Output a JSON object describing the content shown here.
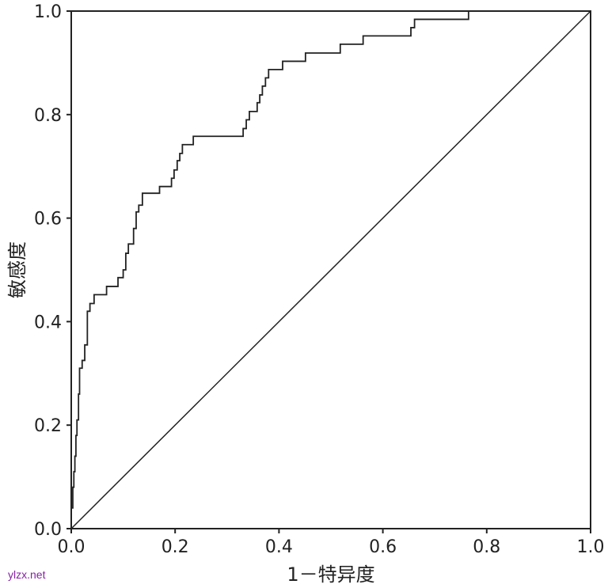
{
  "chart_data": {
    "type": "line",
    "title": "",
    "xlabel": "1－特异度",
    "ylabel": "敏感度",
    "xlim": [
      0,
      1
    ],
    "ylim": [
      0,
      1
    ],
    "x_ticks": [
      "0.0",
      "0.2",
      "0.4",
      "0.6",
      "0.8",
      "1.0"
    ],
    "y_ticks": [
      "0.0",
      "0.2",
      "0.4",
      "0.6",
      "0.8",
      "1.0"
    ],
    "grid": false,
    "legend": "none",
    "series": [
      {
        "kind": "step",
        "color": "#222222",
        "points": [
          [
            0.0,
            0.0
          ],
          [
            0.0,
            0.04
          ],
          [
            0.003,
            0.04
          ],
          [
            0.003,
            0.08
          ],
          [
            0.005,
            0.08
          ],
          [
            0.005,
            0.11
          ],
          [
            0.007,
            0.11
          ],
          [
            0.007,
            0.14
          ],
          [
            0.009,
            0.14
          ],
          [
            0.009,
            0.18
          ],
          [
            0.011,
            0.18
          ],
          [
            0.011,
            0.21
          ],
          [
            0.014,
            0.21
          ],
          [
            0.014,
            0.26
          ],
          [
            0.016,
            0.26
          ],
          [
            0.016,
            0.31
          ],
          [
            0.021,
            0.31
          ],
          [
            0.021,
            0.325
          ],
          [
            0.026,
            0.325
          ],
          [
            0.026,
            0.355
          ],
          [
            0.031,
            0.355
          ],
          [
            0.031,
            0.42
          ],
          [
            0.036,
            0.42
          ],
          [
            0.036,
            0.435
          ],
          [
            0.044,
            0.435
          ],
          [
            0.044,
            0.452
          ],
          [
            0.068,
            0.452
          ],
          [
            0.068,
            0.468
          ],
          [
            0.09,
            0.468
          ],
          [
            0.09,
            0.485
          ],
          [
            0.1,
            0.485
          ],
          [
            0.1,
            0.5
          ],
          [
            0.105,
            0.5
          ],
          [
            0.105,
            0.532
          ],
          [
            0.11,
            0.532
          ],
          [
            0.11,
            0.55
          ],
          [
            0.12,
            0.55
          ],
          [
            0.12,
            0.58
          ],
          [
            0.125,
            0.58
          ],
          [
            0.125,
            0.612
          ],
          [
            0.13,
            0.612
          ],
          [
            0.13,
            0.625
          ],
          [
            0.137,
            0.625
          ],
          [
            0.137,
            0.648
          ],
          [
            0.17,
            0.648
          ],
          [
            0.17,
            0.661
          ],
          [
            0.193,
            0.661
          ],
          [
            0.193,
            0.677
          ],
          [
            0.198,
            0.677
          ],
          [
            0.198,
            0.693
          ],
          [
            0.204,
            0.693
          ],
          [
            0.204,
            0.711
          ],
          [
            0.209,
            0.711
          ],
          [
            0.209,
            0.725
          ],
          [
            0.214,
            0.725
          ],
          [
            0.214,
            0.742
          ],
          [
            0.235,
            0.742
          ],
          [
            0.235,
            0.758
          ],
          [
            0.331,
            0.758
          ],
          [
            0.331,
            0.773
          ],
          [
            0.337,
            0.773
          ],
          [
            0.337,
            0.79
          ],
          [
            0.343,
            0.79
          ],
          [
            0.343,
            0.806
          ],
          [
            0.358,
            0.806
          ],
          [
            0.358,
            0.823
          ],
          [
            0.363,
            0.823
          ],
          [
            0.363,
            0.838
          ],
          [
            0.368,
            0.838
          ],
          [
            0.368,
            0.855
          ],
          [
            0.374,
            0.855
          ],
          [
            0.374,
            0.871
          ],
          [
            0.38,
            0.871
          ],
          [
            0.38,
            0.887
          ],
          [
            0.407,
            0.887
          ],
          [
            0.407,
            0.903
          ],
          [
            0.451,
            0.903
          ],
          [
            0.451,
            0.919
          ],
          [
            0.518,
            0.919
          ],
          [
            0.518,
            0.936
          ],
          [
            0.562,
            0.936
          ],
          [
            0.562,
            0.952
          ],
          [
            0.654,
            0.952
          ],
          [
            0.654,
            0.968
          ],
          [
            0.661,
            0.968
          ],
          [
            0.661,
            0.984
          ],
          [
            0.765,
            0.984
          ],
          [
            0.765,
            1.0
          ]
        ]
      },
      {
        "kind": "reference",
        "color": "#222222",
        "points": [
          [
            0,
            0
          ],
          [
            1,
            1
          ]
        ]
      }
    ]
  },
  "watermark": "ylzx.net"
}
